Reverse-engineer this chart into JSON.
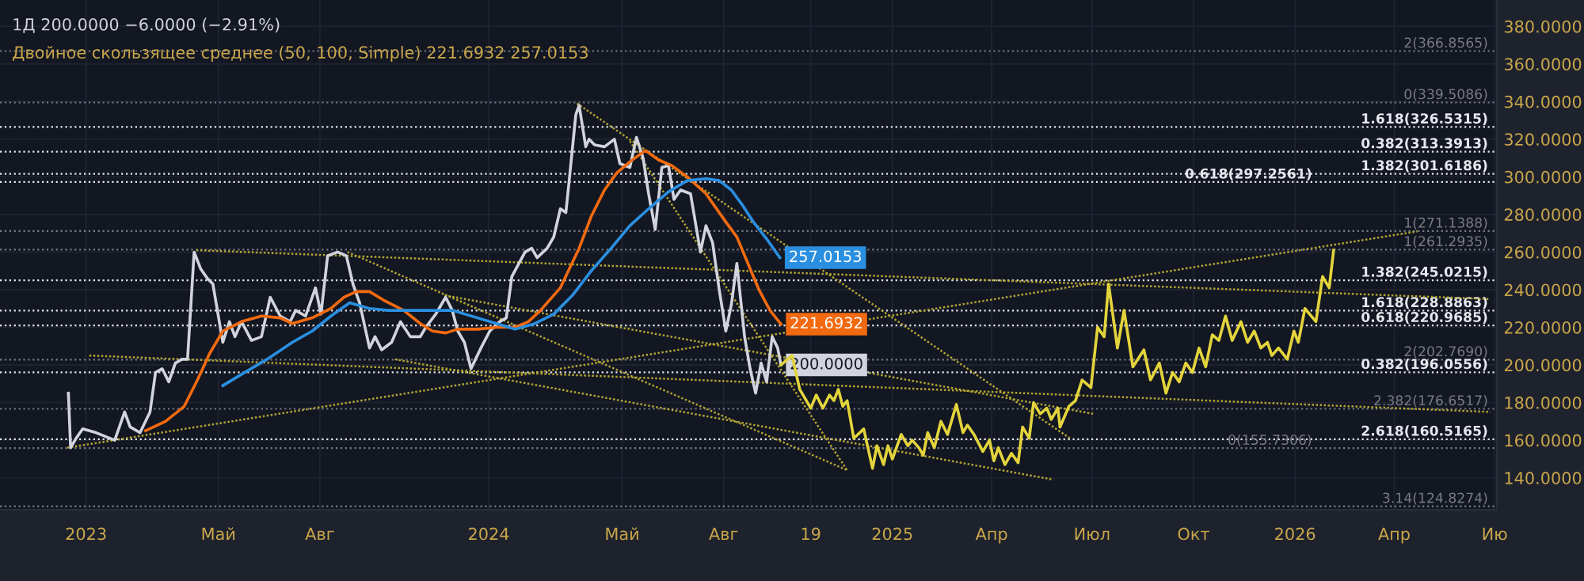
{
  "chart_data": {
    "type": "line",
    "title": "1Д 200.0000 −6.0000 (−2.91%)",
    "subtitle": "Двойное скользящее среднее (50, 100, Simple) 221.6932 257.0153",
    "xlim": [
      "2022-10-15",
      "2026-07-03"
    ],
    "ylim": [
      123,
      394
    ],
    "xticks": [
      {
        "value": "2023-01-01",
        "label": "2023"
      },
      {
        "value": "2023-05-01",
        "label": "Май"
      },
      {
        "value": "2023-08-01",
        "label": "Авг"
      },
      {
        "value": "2024-01-01",
        "label": "2024"
      },
      {
        "value": "2024-05-01",
        "label": "Май"
      },
      {
        "value": "2024-08-01",
        "label": "Авг"
      },
      {
        "value": "2024-10-19",
        "label": "19"
      },
      {
        "value": "2025-01-01",
        "label": "2025"
      },
      {
        "value": "2025-04-01",
        "label": "Апр"
      },
      {
        "value": "2025-07-01",
        "label": "Июл"
      },
      {
        "value": "2025-10-01",
        "label": "Окт"
      },
      {
        "value": "2026-01-01",
        "label": "2026"
      },
      {
        "value": "2026-04-01",
        "label": "Апр"
      },
      {
        "value": "2026-07-01",
        "label": "Ию"
      }
    ],
    "yticks": [
      {
        "value": 140,
        "label": "140.0000"
      },
      {
        "value": 160,
        "label": "160.0000"
      },
      {
        "value": 180,
        "label": "180.0000"
      },
      {
        "value": 200,
        "label": "200.0000"
      },
      {
        "value": 220,
        "label": "220.0000"
      },
      {
        "value": 240,
        "label": "240.0000"
      },
      {
        "value": 260,
        "label": "260.0000"
      },
      {
        "value": 280,
        "label": "280.0000"
      },
      {
        "value": 300,
        "label": "300.0000"
      },
      {
        "value": 320,
        "label": "320.0000"
      },
      {
        "value": 340,
        "label": "340.0000"
      },
      {
        "value": 360,
        "label": "360.0000"
      },
      {
        "value": 380,
        "label": "380.0000"
      }
    ],
    "grid": true,
    "series": [
      {
        "color": "#d1d4dc",
        "line_style": "solid",
        "x": [
          "2022-12-16",
          "2022-12-18",
          "2022-12-23",
          "2022-12-29",
          "2023-01-10",
          "2023-01-27",
          "2023-02-05",
          "2023-02-10",
          "2023-02-19",
          "2023-02-28",
          "2023-03-05",
          "2023-03-11",
          "2023-03-17",
          "2023-03-23",
          "2023-03-29",
          "2023-04-03",
          "2023-04-09",
          "2023-04-15",
          "2023-04-21",
          "2023-04-26",
          "2023-05-05",
          "2023-05-11",
          "2023-05-16",
          "2023-05-22",
          "2023-05-31",
          "2023-06-09",
          "2023-06-17",
          "2023-06-26",
          "2023-07-05",
          "2023-07-10",
          "2023-07-19",
          "2023-07-28",
          "2023-08-02",
          "2023-08-08",
          "2023-08-17",
          "2023-08-25",
          "2023-08-31",
          "2023-09-06",
          "2023-09-15",
          "2023-09-20",
          "2023-09-26",
          "2023-10-05",
          "2023-10-13",
          "2023-10-22",
          "2023-10-31",
          "2023-11-05",
          "2023-11-14",
          "2023-11-23",
          "2023-11-29",
          "2023-12-04",
          "2023-12-10",
          "2023-12-16",
          "2023-12-25",
          "2024-01-02",
          "2024-01-11",
          "2024-01-17",
          "2024-01-22",
          "2024-02-03",
          "2024-02-09",
          "2024-02-14",
          "2024-02-23",
          "2024-02-29",
          "2024-03-06",
          "2024-03-11",
          "2024-03-14",
          "2024-03-20",
          "2024-03-23",
          "2024-03-29",
          "2024-04-01",
          "2024-04-06",
          "2024-04-15",
          "2024-04-24",
          "2024-04-29",
          "2024-05-08",
          "2024-05-14",
          "2024-05-20",
          "2024-05-25",
          "2024-05-31",
          "2024-06-06",
          "2024-06-12",
          "2024-06-17",
          "2024-06-23",
          "2024-07-02",
          "2024-07-11",
          "2024-07-16",
          "2024-07-22",
          "2024-07-28",
          "2024-08-03",
          "2024-08-08",
          "2024-08-13",
          "2024-08-20",
          "2024-08-25",
          "2024-08-30",
          "2024-09-04",
          "2024-09-09",
          "2024-09-14",
          "2024-09-19",
          "2024-09-22"
        ],
        "values": [
          185,
          156,
          161,
          166,
          164,
          160,
          175,
          167,
          164,
          175,
          196,
          198,
          191,
          201,
          203,
          203,
          260,
          251,
          246,
          243,
          212,
          223,
          215,
          223,
          213,
          215,
          236,
          226,
          223,
          229,
          226,
          241,
          227,
          258,
          260,
          258,
          243,
          233,
          209,
          215,
          208,
          212,
          223,
          215,
          215,
          220,
          227,
          236,
          229,
          218,
          212,
          198,
          209,
          218,
          223,
          225,
          247,
          260,
          262,
          257,
          262,
          268,
          283,
          281,
          298,
          333,
          338,
          316,
          320,
          317,
          316,
          320,
          307,
          305,
          321,
          310,
          291,
          272,
          305,
          306,
          288,
          293,
          291,
          260,
          274,
          265,
          240,
          218,
          232,
          254,
          215,
          198,
          185,
          201,
          191,
          215,
          209,
          200.0
        ],
        "value_labels": [
          null,
          null,
          null,
          null,
          null,
          null,
          null,
          null,
          null,
          null,
          null,
          null,
          null,
          null,
          null,
          null,
          null,
          null,
          null,
          null,
          null,
          null,
          null,
          null,
          null,
          null,
          null,
          null,
          null,
          null,
          null,
          null,
          null,
          null,
          null,
          null,
          null,
          null,
          null,
          null,
          null,
          null,
          null,
          null,
          null,
          null,
          null,
          null,
          null,
          null,
          null,
          null,
          null,
          null,
          null,
          null,
          null,
          null,
          null,
          null,
          null,
          null,
          null,
          null,
          null,
          null,
          null,
          null,
          null,
          null,
          null,
          null,
          null,
          null,
          null,
          null,
          null,
          null,
          null,
          null,
          null,
          null,
          null,
          null,
          null,
          null,
          null,
          null,
          null,
          null,
          null,
          null,
          null,
          null,
          null,
          null,
          null,
          "200.0000"
        ]
      },
      {
        "color": "#f26a10",
        "line_style": "solid",
        "x": [
          "2023-02-24",
          "2023-03-14",
          "2023-03-31",
          "2023-04-12",
          "2023-04-23",
          "2023-05-05",
          "2023-05-22",
          "2023-06-09",
          "2023-06-26",
          "2023-07-07",
          "2023-07-25",
          "2023-08-11",
          "2023-08-23",
          "2023-09-03",
          "2023-09-15",
          "2023-09-29",
          "2023-10-16",
          "2023-10-31",
          "2023-11-11",
          "2023-11-23",
          "2023-12-04",
          "2023-12-22",
          "2024-01-08",
          "2024-01-25",
          "2024-02-06",
          "2024-02-17",
          "2024-03-06",
          "2024-03-23",
          "2024-04-03",
          "2024-04-15",
          "2024-04-26",
          "2024-05-08",
          "2024-05-22",
          "2024-06-03",
          "2024-06-15",
          "2024-06-29",
          "2024-07-16",
          "2024-08-03",
          "2024-08-13",
          "2024-08-23",
          "2024-09-02",
          "2024-09-12",
          "2024-09-22"
        ],
        "values": [
          165,
          170,
          178,
          192,
          206,
          218,
          223,
          226,
          225,
          222,
          225,
          230,
          236,
          239,
          239,
          234,
          229,
          222,
          218,
          217,
          219,
          219,
          220,
          220,
          223,
          229,
          241,
          262,
          279,
          293,
          302,
          308,
          314,
          309,
          306,
          300,
          291,
          276,
          268,
          254,
          240,
          229,
          221.6932
        ],
        "value_labels": [
          null,
          null,
          null,
          null,
          null,
          null,
          null,
          null,
          null,
          null,
          null,
          null,
          null,
          null,
          null,
          null,
          null,
          null,
          null,
          null,
          null,
          null,
          null,
          null,
          null,
          null,
          null,
          null,
          null,
          null,
          null,
          null,
          null,
          null,
          null,
          null,
          null,
          null,
          null,
          null,
          null,
          null,
          "221.6932"
        ]
      },
      {
        "color": "#2a8fe0",
        "line_style": "solid",
        "x": [
          "2023-05-05",
          "2023-05-22",
          "2023-06-14",
          "2023-07-07",
          "2023-07-25",
          "2023-08-11",
          "2023-08-28",
          "2023-09-15",
          "2023-10-02",
          "2023-10-31",
          "2023-11-29",
          "2023-12-22",
          "2024-01-08",
          "2024-01-25",
          "2024-02-12",
          "2024-02-29",
          "2024-03-17",
          "2024-04-03",
          "2024-04-21",
          "2024-05-08",
          "2024-05-25",
          "2024-06-12",
          "2024-06-29",
          "2024-07-16",
          "2024-07-28",
          "2024-08-08",
          "2024-08-18",
          "2024-08-28",
          "2024-09-09",
          "2024-09-21"
        ],
        "values": [
          189,
          195,
          203,
          212,
          218,
          226,
          233,
          230,
          229,
          229,
          229,
          225,
          222,
          219,
          222,
          227,
          237,
          250,
          262,
          274,
          283,
          292,
          298,
          299,
          298,
          293,
          285,
          276,
          267,
          257.0153
        ],
        "value_labels": [
          null,
          null,
          null,
          null,
          null,
          null,
          null,
          null,
          null,
          null,
          null,
          null,
          null,
          null,
          null,
          null,
          null,
          null,
          null,
          null,
          null,
          null,
          null,
          null,
          null,
          null,
          null,
          null,
          null,
          "257.0153"
        ]
      },
      {
        "color": "#e3d43c",
        "line_style": "solid",
        "x": [
          "2024-09-22",
          "2024-10-02",
          "2024-10-09",
          "2024-10-19",
          "2024-10-24",
          "2024-10-30",
          "2024-11-05",
          "2024-11-09",
          "2024-11-13",
          "2024-11-17",
          "2024-11-21",
          "2024-11-27",
          "2024-12-06",
          "2024-12-14",
          "2024-12-18",
          "2024-12-24",
          "2024-12-28",
          "2025-01-01",
          "2025-01-09",
          "2025-01-15",
          "2025-01-19",
          "2025-01-25",
          "2025-01-29",
          "2025-02-02",
          "2025-02-08",
          "2025-02-14",
          "2025-02-20",
          "2025-02-28",
          "2025-03-06",
          "2025-03-10",
          "2025-03-16",
          "2025-03-24",
          "2025-03-30",
          "2025-04-03",
          "2025-04-07",
          "2025-04-13",
          "2025-04-19",
          "2025-04-25",
          "2025-04-29",
          "2025-05-05",
          "2025-05-09",
          "2025-05-15",
          "2025-05-21",
          "2025-05-25",
          "2025-05-31",
          "2025-06-02",
          "2025-06-10",
          "2025-06-16",
          "2025-06-22",
          "2025-06-30",
          "2025-07-06",
          "2025-07-12",
          "2025-07-16",
          "2025-07-24",
          "2025-07-30",
          "2025-08-07",
          "2025-08-17",
          "2025-08-23",
          "2025-08-31",
          "2025-09-06",
          "2025-09-12",
          "2025-09-18",
          "2025-09-24",
          "2025-09-30",
          "2025-10-06",
          "2025-10-12",
          "2025-10-18",
          "2025-10-24",
          "2025-10-30",
          "2025-11-05",
          "2025-11-13",
          "2025-11-19",
          "2025-11-25",
          "2025-12-01",
          "2025-12-07",
          "2025-12-11",
          "2025-12-17",
          "2025-12-25",
          "2025-12-31",
          "2026-01-04",
          "2026-01-10",
          "2026-01-20",
          "2026-01-26",
          "2026-02-01",
          "2026-02-05"
        ],
        "values": [
          200,
          205,
          187,
          177,
          184,
          177,
          184,
          181,
          187,
          178,
          181,
          161,
          166,
          145,
          157,
          147,
          157,
          150,
          163,
          157,
          160,
          156,
          152,
          164,
          156,
          170,
          163,
          179,
          164,
          168,
          163,
          154,
          160,
          149,
          156,
          147,
          153,
          148,
          167,
          161,
          180,
          174,
          177,
          171,
          177,
          167,
          178,
          181,
          192,
          188,
          220,
          215,
          243,
          209,
          229,
          199,
          208,
          192,
          201,
          185,
          196,
          191,
          201,
          196,
          209,
          199,
          216,
          213,
          226,
          213,
          223,
          212,
          218,
          209,
          212,
          205,
          209,
          203,
          218,
          212,
          230,
          223,
          247,
          241,
          261
        ]
      },
      {
        "color": "#b3a532",
        "line_style": "dotted",
        "x": [
          "2022-12-15",
          "2026-04-22"
        ],
        "values": [
          156,
          271
        ]
      },
      {
        "color": "#b3a532",
        "line_style": "dotted",
        "x": [
          "2023-04-11",
          "2026-06-27"
        ],
        "values": [
          261,
          235
        ]
      },
      {
        "color": "#b3a532",
        "line_style": "dotted",
        "x": [
          "2024-03-21",
          "2025-06-11"
        ],
        "values": [
          339,
          161
        ]
      },
      {
        "color": "#b3a532",
        "line_style": "dotted",
        "x": [
          "2024-05-08",
          "2024-11-21"
        ],
        "values": [
          319,
          144
        ]
      },
      {
        "color": "#b3a532",
        "line_style": "dotted",
        "x": [
          "2023-08-26",
          "2024-11-21"
        ],
        "values": [
          260,
          144
        ]
      },
      {
        "color": "#b3a532",
        "line_style": "dotted",
        "x": [
          "2023-11-22",
          "2025-07-02"
        ],
        "values": [
          237,
          174
        ]
      },
      {
        "color": "#b3a532",
        "line_style": "dotted",
        "x": [
          "2023-01-04",
          "2026-06-27"
        ],
        "values": [
          205,
          175
        ]
      },
      {
        "color": "#b3a532",
        "line_style": "dotted",
        "x": [
          "2023-10-08",
          "2025-05-27"
        ],
        "values": [
          203,
          139
        ]
      }
    ],
    "ref_lines": [
      {
        "axis": "y",
        "value": 366.8565,
        "label": "2(366.8565)",
        "color": "#787b86",
        "line_style": "dotted"
      },
      {
        "axis": "y",
        "value": 339.5086,
        "label": "0(339.5086)",
        "color": "#787b86",
        "line_style": "dotted"
      },
      {
        "axis": "y",
        "value": 326.5315,
        "label": "1.618(326.5315)",
        "color": "#e6e8ee",
        "line_style": "dotted"
      },
      {
        "axis": "y",
        "value": 313.3913,
        "label": "0.382(313.3913)",
        "color": "#e6e8ee",
        "line_style": "dotted"
      },
      {
        "axis": "y",
        "value": 301.6186,
        "label": "1.382(301.6186)",
        "color": "#e6e8ee",
        "line_style": "dotted"
      },
      {
        "axis": "y",
        "value": 297.2561,
        "label": "0.618(297.2561)",
        "color": "#e6e8ee",
        "line_style": "dotted"
      },
      {
        "axis": "y",
        "value": 271.1388,
        "label": "1(271.1388)",
        "color": "#787b86",
        "line_style": "dotted"
      },
      {
        "axis": "y",
        "value": 261.2935,
        "label": "1(261.2935)",
        "color": "#787b86",
        "line_style": "dotted"
      },
      {
        "axis": "y",
        "value": 245.0215,
        "label": "1.382(245.0215)",
        "color": "#e6e8ee",
        "line_style": "dotted"
      },
      {
        "axis": "y",
        "value": 228.8863,
        "label": "1.618(228.8863)",
        "color": "#e6e8ee",
        "line_style": "dotted"
      },
      {
        "axis": "y",
        "value": 220.9685,
        "label": "0.618(220.9685)",
        "color": "#e6e8ee",
        "line_style": "dotted"
      },
      {
        "axis": "y",
        "value": 202.769,
        "label": "2(202.7690)",
        "color": "#787b86",
        "line_style": "dotted"
      },
      {
        "axis": "y",
        "value": 196.0556,
        "label": "0.382(196.0556)",
        "color": "#e6e8ee",
        "line_style": "dotted"
      },
      {
        "axis": "y",
        "value": 176.6517,
        "label": "2.382(176.6517)",
        "color": "#787b86",
        "line_style": "dotted"
      },
      {
        "axis": "y",
        "value": 160.5165,
        "label": "2.618(160.5165)",
        "color": "#e6e8ee",
        "line_style": "dotted"
      },
      {
        "axis": "y",
        "value": 155.7306,
        "label": "0(155.7306)",
        "color": "#787b86",
        "line_style": "dotted"
      },
      {
        "axis": "y",
        "value": 124.8274,
        "label": "3.14(124.8274)",
        "color": "#787b86",
        "line_style": "dotted"
      }
    ]
  }
}
